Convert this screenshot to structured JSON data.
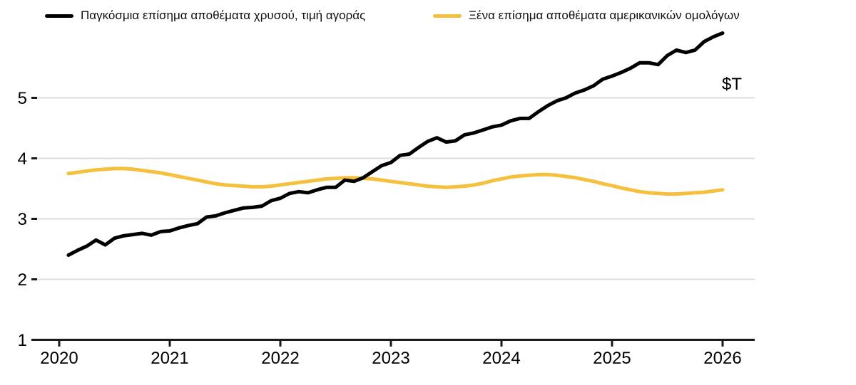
{
  "chart_data": {
    "type": "line",
    "title": "",
    "unit_label": "$T",
    "xlabel": "",
    "ylabel": "",
    "grid": "horizontal",
    "legend_position": "top",
    "x_ticks": [
      2020,
      2021,
      2022,
      2023,
      2024,
      2025,
      2026
    ],
    "y_ticks": [
      1,
      2,
      3,
      4,
      5
    ],
    "ylim": [
      1,
      6.2
    ],
    "xlim": [
      2019.8,
      2026.3
    ],
    "x": [
      2020.083,
      2020.167,
      2020.25,
      2020.333,
      2020.417,
      2020.5,
      2020.583,
      2020.667,
      2020.75,
      2020.833,
      2020.917,
      2021.0,
      2021.083,
      2021.167,
      2021.25,
      2021.333,
      2021.417,
      2021.5,
      2021.583,
      2021.667,
      2021.75,
      2021.833,
      2021.917,
      2022.0,
      2022.083,
      2022.167,
      2022.25,
      2022.333,
      2022.417,
      2022.5,
      2022.583,
      2022.667,
      2022.75,
      2022.833,
      2022.917,
      2023.0,
      2023.083,
      2023.167,
      2023.25,
      2023.333,
      2023.417,
      2023.5,
      2023.583,
      2023.667,
      2023.75,
      2023.833,
      2023.917,
      2024.0,
      2024.083,
      2024.167,
      2024.25,
      2024.333,
      2024.417,
      2024.5,
      2024.583,
      2024.667,
      2024.75,
      2024.833,
      2024.917,
      2025.0,
      2025.083,
      2025.167,
      2025.25,
      2025.333,
      2025.417,
      2025.5,
      2025.583,
      2025.667,
      2025.75,
      2025.833,
      2025.917,
      2026.0
    ],
    "series": [
      {
        "name": "Παγκόσμια επίσημα αποθέματα χρυσού, τιμή αγοράς",
        "color": "#000000",
        "values": [
          2.4,
          2.48,
          2.55,
          2.65,
          2.57,
          2.68,
          2.72,
          2.74,
          2.76,
          2.73,
          2.79,
          2.8,
          2.85,
          2.89,
          2.92,
          3.03,
          3.05,
          3.1,
          3.14,
          3.18,
          3.19,
          3.21,
          3.3,
          3.34,
          3.42,
          3.45,
          3.43,
          3.48,
          3.52,
          3.52,
          3.64,
          3.62,
          3.68,
          3.78,
          3.88,
          3.93,
          4.05,
          4.07,
          4.18,
          4.28,
          4.34,
          4.27,
          4.29,
          4.39,
          4.42,
          4.47,
          4.52,
          4.55,
          4.62,
          4.66,
          4.66,
          4.77,
          4.87,
          4.95,
          5.0,
          5.08,
          5.13,
          5.2,
          5.31,
          5.36,
          5.42,
          5.49,
          5.58,
          5.58,
          5.55,
          5.7,
          5.79,
          5.75,
          5.79,
          5.93,
          6.01,
          6.07
        ]
      },
      {
        "name": "Ξένα επίσημα αποθέματα αμερικανικών ομολόγων",
        "color": "#F5C03E",
        "values": [
          3.75,
          3.77,
          3.79,
          3.81,
          3.82,
          3.83,
          3.83,
          3.82,
          3.8,
          3.78,
          3.76,
          3.73,
          3.7,
          3.67,
          3.64,
          3.61,
          3.58,
          3.56,
          3.55,
          3.54,
          3.53,
          3.53,
          3.54,
          3.56,
          3.58,
          3.6,
          3.62,
          3.64,
          3.66,
          3.67,
          3.68,
          3.68,
          3.67,
          3.66,
          3.64,
          3.62,
          3.6,
          3.58,
          3.56,
          3.54,
          3.53,
          3.52,
          3.53,
          3.54,
          3.56,
          3.59,
          3.63,
          3.66,
          3.69,
          3.71,
          3.72,
          3.73,
          3.73,
          3.72,
          3.7,
          3.68,
          3.65,
          3.62,
          3.58,
          3.55,
          3.51,
          3.48,
          3.45,
          3.43,
          3.42,
          3.41,
          3.41,
          3.42,
          3.43,
          3.44,
          3.46,
          3.48
        ]
      }
    ]
  }
}
